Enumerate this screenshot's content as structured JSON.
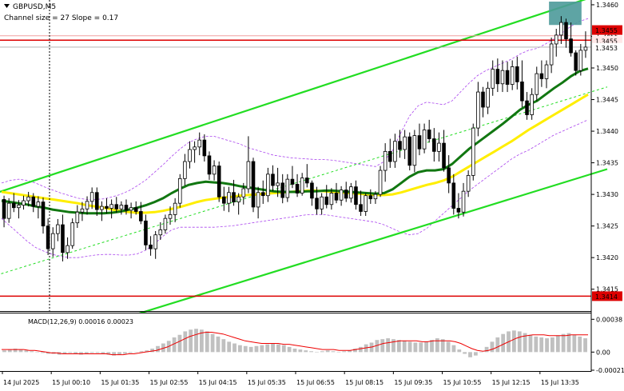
{
  "header": {
    "symbol": "GBPUSD,M5",
    "channel_info": "Channel size = 27 Slope = 0.17",
    "menu_icon": "triangle-down-icon"
  },
  "macd": {
    "label": "MACD(12,26,9) 0.00016 0.00023",
    "ylim": [
      -0.00021,
      0.00042
    ],
    "ticks": [
      "0.00038",
      "0.00",
      "-0.00021"
    ],
    "tick_values": [
      0.00038,
      0.0,
      -0.00021
    ],
    "hist": [
      2e-05,
      3e-05,
      4e-05,
      3e-05,
      2e-05,
      1e-05,
      0.0,
      -1e-05,
      -2e-05,
      -2e-05,
      -3e-05,
      -2e-05,
      -1e-05,
      -2e-05,
      -3e-05,
      -2e-05,
      -1e-05,
      -1e-05,
      -2e-05,
      -3e-05,
      -4e-05,
      -3e-05,
      -2e-05,
      -1e-05,
      0.0,
      1e-05,
      2e-05,
      4e-05,
      7e-05,
      0.0001,
      0.00013,
      0.00017,
      0.0002,
      0.00024,
      0.00026,
      0.00027,
      0.00026,
      0.00024,
      0.00021,
      0.00018,
      0.00015,
      0.00012,
      0.0001,
      8e-05,
      7e-05,
      6e-05,
      7e-05,
      8e-05,
      9e-05,
      0.0001,
      9e-05,
      8e-05,
      6e-05,
      4e-05,
      3e-05,
      2e-05,
      1e-05,
      0.0,
      1e-05,
      2e-05,
      1e-05,
      0.0,
      1e-05,
      2e-05,
      4e-05,
      6e-05,
      9e-05,
      0.00011,
      0.00014,
      0.00015,
      0.00016,
      0.00015,
      0.00014,
      0.00013,
      0.00012,
      0.00011,
      0.00011,
      0.00012,
      0.00014,
      0.00016,
      0.00015,
      0.00012,
      8e-05,
      3e-05,
      -2e-05,
      -6e-05,
      -4e-05,
      0.0,
      6e-05,
      0.00012,
      0.00017,
      0.00021,
      0.00024,
      0.00025,
      0.00024,
      0.00022,
      0.0002,
      0.00018,
      0.00017,
      0.00016,
      0.00017,
      0.00019,
      0.00021,
      0.00022,
      0.0002,
      0.00018,
      0.00016
    ],
    "signal": [
      3e-05,
      3e-05,
      3e-05,
      3e-05,
      3e-05,
      2e-05,
      2e-05,
      1e-05,
      0.0,
      -1e-05,
      -1e-05,
      -2e-05,
      -2e-05,
      -2e-05,
      -2e-05,
      -2e-05,
      -2e-05,
      -2e-05,
      -2e-05,
      -2e-05,
      -3e-05,
      -3e-05,
      -3e-05,
      -2e-05,
      -2e-05,
      -1e-05,
      0.0,
      1e-05,
      2e-05,
      4e-05,
      6e-05,
      9e-05,
      0.00012,
      0.00015,
      0.00018,
      0.0002,
      0.00022,
      0.00023,
      0.00023,
      0.00022,
      0.00021,
      0.00019,
      0.00017,
      0.00015,
      0.00013,
      0.00012,
      0.00011,
      0.0001,
      0.0001,
      0.0001,
      0.0001,
      9e-05,
      9e-05,
      8e-05,
      7e-05,
      6e-05,
      5e-05,
      4e-05,
      3e-05,
      3e-05,
      3e-05,
      2e-05,
      2e-05,
      2e-05,
      3e-05,
      4e-05,
      5e-05,
      6e-05,
      8e-05,
      0.0001,
      0.00011,
      0.00012,
      0.00013,
      0.00013,
      0.00013,
      0.00013,
      0.00012,
      0.00012,
      0.00013,
      0.00013,
      0.00013,
      0.00013,
      0.00012,
      0.0001,
      7e-05,
      4e-05,
      2e-05,
      1e-05,
      2e-05,
      4e-05,
      7e-05,
      0.0001,
      0.00013,
      0.00016,
      0.00018,
      0.00019,
      0.0002,
      0.0002,
      0.0002,
      0.00019,
      0.00019,
      0.00019,
      0.00019,
      0.0002,
      0.0002,
      0.0002,
      0.0002
    ]
  },
  "chart_data": {
    "type": "candlestick",
    "ylim": [
      1.34118,
      1.34605
    ],
    "y_ticks": [
      "1.3460",
      "1.3455",
      "1.3450",
      "1.3445",
      "1.3440",
      "1.3435",
      "1.3430",
      "1.3425",
      "1.3420",
      "1.3415"
    ],
    "y_tick_values": [
      1.346,
      1.3455,
      1.345,
      1.3445,
      1.344,
      1.3435,
      1.343,
      1.3425,
      1.342,
      1.3415
    ],
    "x_labels": [
      "14 Jul 2025",
      "15 Jul 00:10",
      "15 Jul 01:35",
      "15 Jul 02:55",
      "15 Jul 04:15",
      "15 Jul 05:35",
      "15 Jul 06:55",
      "15 Jul 08:15",
      "15 Jul 09:35",
      "15 Jul 10:55",
      "15 Jul 12:15",
      "15 Jul 13:35"
    ],
    "price_labels": {
      "top_red": "1.3455",
      "top_gray": "1.3455",
      "current": "1.3453",
      "bottom_red": "1.3414"
    },
    "levels": [
      1.34551,
      1.34544,
      1.34139
    ],
    "current_price": 1.34533,
    "colors": {
      "channel": "#22dd22",
      "level": "#dd0000",
      "ma_green": "#117711",
      "ma_yellow": "#ffee00",
      "bands": "#aa44ee",
      "highlight": "#4c9a9a",
      "candle": "#000000"
    },
    "candles": [
      [
        1.34292,
        1.34298,
        1.34248,
        1.34262
      ],
      [
        1.34262,
        1.34294,
        1.34255,
        1.34286
      ],
      [
        1.34286,
        1.34302,
        1.34272,
        1.34279
      ],
      [
        1.34279,
        1.34291,
        1.34262,
        1.34283
      ],
      [
        1.34283,
        1.34298,
        1.34276,
        1.3429
      ],
      [
        1.3429,
        1.34304,
        1.34281,
        1.34296
      ],
      [
        1.34296,
        1.34302,
        1.34272,
        1.34281
      ],
      [
        1.34281,
        1.34297,
        1.34262,
        1.34288
      ],
      [
        1.34288,
        1.34295,
        1.34238,
        1.3425
      ],
      [
        1.3425,
        1.34262,
        1.34204,
        1.34214
      ],
      [
        1.34214,
        1.34248,
        1.34201,
        1.34238
      ],
      [
        1.34238,
        1.34261,
        1.34226,
        1.34252
      ],
      [
        1.34252,
        1.34268,
        1.34194,
        1.34208
      ],
      [
        1.34208,
        1.34232,
        1.34198,
        1.34219
      ],
      [
        1.34219,
        1.34262,
        1.34214,
        1.34255
      ],
      [
        1.34255,
        1.34283,
        1.34247,
        1.34272
      ],
      [
        1.34272,
        1.34288,
        1.34258,
        1.34277
      ],
      [
        1.34277,
        1.34297,
        1.34268,
        1.34289
      ],
      [
        1.34289,
        1.34311,
        1.34277,
        1.34303
      ],
      [
        1.34303,
        1.34311,
        1.34266,
        1.34276
      ],
      [
        1.34276,
        1.34289,
        1.34258,
        1.34281
      ],
      [
        1.34281,
        1.34294,
        1.3427,
        1.34278
      ],
      [
        1.34278,
        1.34292,
        1.34262,
        1.34284
      ],
      [
        1.34284,
        1.34296,
        1.34271,
        1.34277
      ],
      [
        1.34277,
        1.34289,
        1.34268,
        1.34283
      ],
      [
        1.34283,
        1.34292,
        1.34268,
        1.34275
      ],
      [
        1.34275,
        1.34287,
        1.34262,
        1.34279
      ],
      [
        1.34279,
        1.34289,
        1.34268,
        1.34273
      ],
      [
        1.34273,
        1.34288,
        1.34253,
        1.34258
      ],
      [
        1.34258,
        1.34268,
        1.34212,
        1.3422
      ],
      [
        1.3422,
        1.34234,
        1.34203,
        1.34214
      ],
      [
        1.34214,
        1.34242,
        1.34198,
        1.34236
      ],
      [
        1.34236,
        1.34256,
        1.34228,
        1.34244
      ],
      [
        1.34244,
        1.34268,
        1.34238,
        1.34262
      ],
      [
        1.34262,
        1.34281,
        1.34252,
        1.34268
      ],
      [
        1.34268,
        1.34294,
        1.34256,
        1.34286
      ],
      [
        1.34286,
        1.34332,
        1.34279,
        1.34325
      ],
      [
        1.34325,
        1.34364,
        1.34314,
        1.34352
      ],
      [
        1.34352,
        1.34384,
        1.34341,
        1.34371
      ],
      [
        1.34371,
        1.34384,
        1.3435,
        1.34375
      ],
      [
        1.34375,
        1.34398,
        1.34362,
        1.34386
      ],
      [
        1.34386,
        1.34395,
        1.34352,
        1.34361
      ],
      [
        1.34361,
        1.34368,
        1.34323,
        1.34332
      ],
      [
        1.34332,
        1.34354,
        1.34322,
        1.34345
      ],
      [
        1.34345,
        1.34352,
        1.34288,
        1.34296
      ],
      [
        1.34296,
        1.34312,
        1.34274,
        1.34286
      ],
      [
        1.34286,
        1.34312,
        1.34272,
        1.34303
      ],
      [
        1.34303,
        1.34323,
        1.34282,
        1.34288
      ],
      [
        1.34288,
        1.34302,
        1.34268,
        1.34296
      ],
      [
        1.34296,
        1.34318,
        1.34284,
        1.34309
      ],
      [
        1.34309,
        1.34392,
        1.34302,
        1.34352
      ],
      [
        1.34352,
        1.34358,
        1.34272,
        1.3428
      ],
      [
        1.3428,
        1.34312,
        1.34262,
        1.34303
      ],
      [
        1.34303,
        1.34322,
        1.34285,
        1.34298
      ],
      [
        1.34298,
        1.34342,
        1.34288,
        1.34332
      ],
      [
        1.34332,
        1.34346,
        1.34305,
        1.34314
      ],
      [
        1.34314,
        1.34342,
        1.34296,
        1.34318
      ],
      [
        1.34318,
        1.34332,
        1.34286,
        1.34295
      ],
      [
        1.34295,
        1.34332,
        1.34288,
        1.34324
      ],
      [
        1.34324,
        1.34345,
        1.3431,
        1.34316
      ],
      [
        1.34316,
        1.34332,
        1.34296,
        1.34302
      ],
      [
        1.34302,
        1.34334,
        1.34298,
        1.34326
      ],
      [
        1.34326,
        1.34348,
        1.34311,
        1.34318
      ],
      [
        1.34318,
        1.34322,
        1.34282,
        1.34294
      ],
      [
        1.34294,
        1.34312,
        1.34268,
        1.34277
      ],
      [
        1.34277,
        1.34302,
        1.34268,
        1.34296
      ],
      [
        1.34296,
        1.34315,
        1.34278,
        1.34284
      ],
      [
        1.34284,
        1.3431,
        1.34276,
        1.34302
      ],
      [
        1.34302,
        1.34318,
        1.34286,
        1.34291
      ],
      [
        1.34291,
        1.34313,
        1.34282,
        1.34307
      ],
      [
        1.34307,
        1.3432,
        1.34288,
        1.34294
      ],
      [
        1.34294,
        1.34318,
        1.34287,
        1.34312
      ],
      [
        1.34312,
        1.34322,
        1.34276,
        1.34284
      ],
      [
        1.34284,
        1.34306,
        1.34266,
        1.34273
      ],
      [
        1.34273,
        1.34302,
        1.34266,
        1.34298
      ],
      [
        1.34298,
        1.34308,
        1.34285,
        1.34293
      ],
      [
        1.34293,
        1.34305,
        1.34285,
        1.343
      ],
      [
        1.343,
        1.34345,
        1.34296,
        1.34338
      ],
      [
        1.34338,
        1.34381,
        1.3432,
        1.34368
      ],
      [
        1.34368,
        1.34388,
        1.34342,
        1.34352
      ],
      [
        1.34352,
        1.34396,
        1.34342,
        1.34384
      ],
      [
        1.34384,
        1.34402,
        1.34358,
        1.34371
      ],
      [
        1.34371,
        1.34402,
        1.34356,
        1.34391
      ],
      [
        1.34391,
        1.34398,
        1.34338,
        1.34346
      ],
      [
        1.34346,
        1.34402,
        1.34335,
        1.34393
      ],
      [
        1.34393,
        1.34412,
        1.34362,
        1.34372
      ],
      [
        1.34372,
        1.34412,
        1.34365,
        1.34402
      ],
      [
        1.34402,
        1.34418,
        1.34382,
        1.34388
      ],
      [
        1.34388,
        1.34405,
        1.34352,
        1.34368
      ],
      [
        1.34368,
        1.34398,
        1.34352,
        1.34381
      ],
      [
        1.34381,
        1.34402,
        1.34336,
        1.34342
      ],
      [
        1.34342,
        1.34362,
        1.34302,
        1.34318
      ],
      [
        1.34318,
        1.34332,
        1.34268,
        1.34278
      ],
      [
        1.34278,
        1.34302,
        1.34262,
        1.34272
      ],
      [
        1.34272,
        1.34318,
        1.34265,
        1.34305
      ],
      [
        1.34305,
        1.34338,
        1.34296,
        1.3433
      ],
      [
        1.3433,
        1.34412,
        1.34322,
        1.34405
      ],
      [
        1.34405,
        1.34478,
        1.34392,
        1.34462
      ],
      [
        1.34462,
        1.3447,
        1.34422,
        1.34438
      ],
      [
        1.34438,
        1.34478,
        1.34427,
        1.34468
      ],
      [
        1.34468,
        1.34512,
        1.34456,
        1.34498
      ],
      [
        1.34498,
        1.34515,
        1.34462,
        1.34475
      ],
      [
        1.34475,
        1.34512,
        1.34462,
        1.34496
      ],
      [
        1.34496,
        1.3451,
        1.34462,
        1.34474
      ],
      [
        1.34474,
        1.34512,
        1.34465,
        1.34502
      ],
      [
        1.34502,
        1.34518,
        1.34466,
        1.34478
      ],
      [
        1.34478,
        1.34512,
        1.34438,
        1.34448
      ],
      [
        1.34448,
        1.34462,
        1.34418,
        1.34426
      ],
      [
        1.34426,
        1.34468,
        1.34418,
        1.34458
      ],
      [
        1.34458,
        1.34502,
        1.34448,
        1.34491
      ],
      [
        1.34491,
        1.34512,
        1.3447,
        1.34483
      ],
      [
        1.34483,
        1.34512,
        1.34468,
        1.34505
      ],
      [
        1.34505,
        1.34548,
        1.34492,
        1.34538
      ],
      [
        1.34538,
        1.34562,
        1.34518,
        1.34552
      ],
      [
        1.34552,
        1.34582,
        1.34538,
        1.34572
      ],
      [
        1.34572,
        1.34578,
        1.34532,
        1.34546
      ],
      [
        1.34546,
        1.34572,
        1.34518,
        1.34524
      ],
      [
        1.34524,
        1.34528,
        1.34488,
        1.34496
      ],
      [
        1.34496,
        1.34538,
        1.34488,
        1.34528
      ],
      [
        1.34528,
        1.34558,
        1.34516,
        1.34533
      ]
    ],
    "ma_green": [
      1.3429,
      1.34288,
      1.34286,
      1.34284,
      1.34281,
      1.34279,
      1.34276,
      1.34274,
      1.34272,
      1.34271,
      1.3427,
      1.3427,
      1.3427,
      1.34271,
      1.34273,
      1.34276,
      1.34279,
      1.34283,
      1.34288,
      1.34294,
      1.34302,
      1.34309,
      1.34315,
      1.34318,
      1.3432,
      1.34319,
      1.34318,
      1.34316,
      1.34313,
      1.34311,
      1.34309,
      1.34307,
      1.34305,
      1.34304,
      1.34304,
      1.34304,
      1.34305,
      1.34305,
      1.34306,
      1.34306,
      1.34305,
      1.34304,
      1.34303,
      1.34302,
      1.34301,
      1.34302,
      1.34308,
      1.34318,
      1.34328,
      1.34335,
      1.34338,
      1.34338,
      1.3434,
      1.34348,
      1.3436,
      1.34372,
      1.34382,
      1.34392,
      1.34402,
      1.34412,
      1.34423,
      1.34434,
      1.34442,
      1.34448,
      1.34458,
      1.34468,
      1.34477,
      1.34487,
      1.34495,
      1.34499
    ],
    "ma_yellow": [
      1.34304,
      1.34302,
      1.343,
      1.34298,
      1.34296,
      1.34294,
      1.34292,
      1.3429,
      1.34288,
      1.34286,
      1.34283,
      1.34281,
      1.34279,
      1.34276,
      1.34274,
      1.34272,
      1.34271,
      1.34271,
      1.34272,
      1.34274,
      1.34277,
      1.3428,
      1.34284,
      1.34288,
      1.34291,
      1.34293,
      1.34295,
      1.34296,
      1.34298,
      1.34299,
      1.343,
      1.34301,
      1.34302,
      1.34303,
      1.34304,
      1.34305,
      1.34306,
      1.34306,
      1.34305,
      1.34304,
      1.34303,
      1.34302,
      1.34301,
      1.343,
      1.34299,
      1.34299,
      1.343,
      1.34303,
      1.34307,
      1.34311,
      1.34315,
      1.34318,
      1.34322,
      1.34328,
      1.34336,
      1.34344,
      1.34352,
      1.3436,
      1.34368,
      1.34376,
      1.34384,
      1.34393,
      1.34402,
      1.3441,
      1.34418,
      1.34426,
      1.34434,
      1.34442,
      1.3445,
      1.34458
    ],
    "band_upper": [
      1.34318,
      1.34322,
      1.34324,
      1.34322,
      1.34318,
      1.34312,
      1.34307,
      1.34302,
      1.34298,
      1.34294,
      1.34292,
      1.34292,
      1.34293,
      1.34296,
      1.343,
      1.34306,
      1.34314,
      1.34323,
      1.34335,
      1.34347,
      1.3436,
      1.34372,
      1.34382,
      1.34388,
      1.34392,
      1.34392,
      1.34388,
      1.34384,
      1.3438,
      1.34374,
      1.3437,
      1.34366,
      1.34362,
      1.3436,
      1.34358,
      1.34357,
      1.34356,
      1.34355,
      1.34355,
      1.34354,
      1.34352,
      1.3435,
      1.34348,
      1.34346,
      1.34344,
      1.34352,
      1.3437,
      1.34398,
      1.34424,
      1.3444,
      1.34446,
      1.34444,
      1.34442,
      1.34448,
      1.34462,
      1.34476,
      1.34488,
      1.34496,
      1.34502,
      1.34508,
      1.34514,
      1.34522,
      1.34528,
      1.34531,
      1.34538,
      1.34546,
      1.34556,
      1.34566,
      1.34574,
      1.34578
    ],
    "band_lower": [
      1.34262,
      1.3425,
      1.34238,
      1.34226,
      1.34216,
      1.3421,
      1.34205,
      1.34202,
      1.342,
      1.342,
      1.34202,
      1.34204,
      1.34205,
      1.34205,
      1.34204,
      1.34204,
      1.34206,
      1.34212,
      1.34222,
      1.34234,
      1.34244,
      1.34248,
      1.34248,
      1.34248,
      1.34248,
      1.34248,
      1.34249,
      1.3425,
      1.34252,
      1.34254,
      1.34256,
      1.34258,
      1.3426,
      1.34262,
      1.34264,
      1.34266,
      1.34268,
      1.34268,
      1.34268,
      1.34266,
      1.34264,
      1.34262,
      1.3426,
      1.34258,
      1.34256,
      1.34252,
      1.34246,
      1.3424,
      1.34236,
      1.34238,
      1.34246,
      1.34258,
      1.3427,
      1.34282,
      1.34294,
      1.34306,
      1.34316,
      1.34326,
      1.34336,
      1.34346,
      1.34356,
      1.34364,
      1.3437,
      1.34378,
      1.34386,
      1.34394,
      1.344,
      1.34406,
      1.34412,
      1.34418
    ]
  }
}
